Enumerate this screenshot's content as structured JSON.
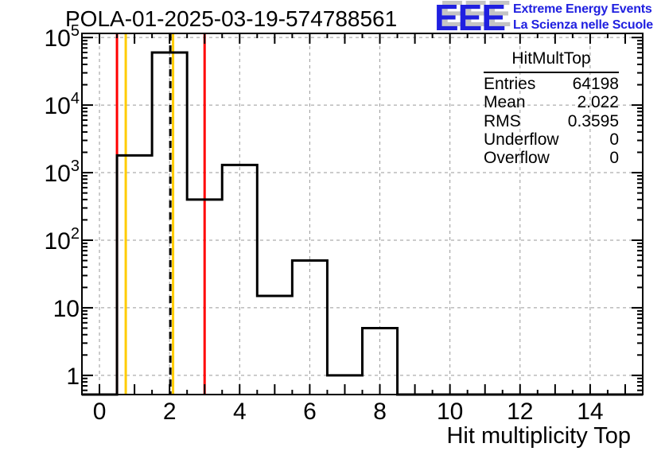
{
  "logo": {
    "acronym": "EEE",
    "line1": "Extreme Energy Events",
    "line2": "La Scienza nelle Scuole",
    "text_color": "#2020e0",
    "shadow_color": "#c4c4c4"
  },
  "stats_box": {
    "title": "HitMultTop",
    "rows": [
      {
        "label": "Entries",
        "value": "64198"
      },
      {
        "label": "Mean",
        "value": "2.022"
      },
      {
        "label": "RMS",
        "value": "0.3595"
      },
      {
        "label": "Underflow",
        "value": "0"
      },
      {
        "label": "Overflow",
        "value": "0"
      }
    ]
  },
  "chart_data": {
    "type": "bar",
    "subtype": "step-histogram-outline",
    "title": "POLA-01-2025-03-19-574788561",
    "xlabel": "Hit multiplicity Top",
    "ylabel": "",
    "x_range": [
      -0.5,
      15.5
    ],
    "y_range": [
      0.52,
      115000
    ],
    "y_scale": "log",
    "grid": true,
    "bin_width": 1,
    "bin_centers": [
      0,
      1,
      2,
      3,
      4,
      5,
      6,
      7,
      8,
      9,
      10,
      11,
      12,
      13,
      14,
      15
    ],
    "counts": [
      0,
      1800,
      60000,
      400,
      1300,
      15,
      50,
      1,
      5,
      0,
      0,
      0,
      0,
      0,
      0,
      0
    ],
    "x_major_ticks": [
      0,
      2,
      4,
      6,
      8,
      10,
      12,
      14
    ],
    "x_tick_labels": [
      "0",
      "2",
      "4",
      "6",
      "8",
      "10",
      "12",
      "14"
    ],
    "x_minor_tick_step": 0.5,
    "y_decades": [
      1,
      10,
      100,
      1000,
      10000,
      100000
    ],
    "y_tick_labels": [
      {
        "base": "1",
        "exp": ""
      },
      {
        "base": "10",
        "exp": ""
      },
      {
        "base": "10",
        "exp": "2"
      },
      {
        "base": "10",
        "exp": "3"
      },
      {
        "base": "10",
        "exp": "4"
      },
      {
        "base": "10",
        "exp": "5"
      }
    ],
    "marker_lines": [
      {
        "x": 0.5,
        "color": "#ff0000",
        "style": "solid"
      },
      {
        "x": 0.75,
        "color": "#ffcc00",
        "style": "solid"
      },
      {
        "x": 2.022,
        "color": "#000000",
        "style": "dashed"
      },
      {
        "x": 2.1,
        "color": "#ffcc00",
        "style": "solid"
      },
      {
        "x": 3.0,
        "color": "#ff0000",
        "style": "solid"
      }
    ],
    "colors": {
      "histogram": "#000000",
      "grid": "#999999",
      "frame": "#000000"
    },
    "legend": "none"
  }
}
